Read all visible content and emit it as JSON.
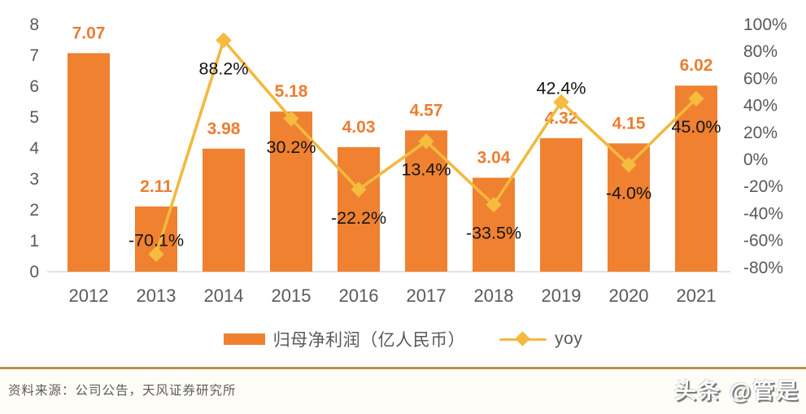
{
  "chart_data": {
    "type": "bar+line",
    "title": "",
    "categories": [
      "2012",
      "2013",
      "2014",
      "2015",
      "2016",
      "2017",
      "2018",
      "2019",
      "2020",
      "2021"
    ],
    "series": [
      {
        "name": "归母净利润（亿人民币）",
        "type": "bar",
        "axis": "left",
        "values": [
          7.07,
          2.11,
          3.98,
          5.18,
          4.03,
          4.57,
          3.04,
          4.32,
          4.15,
          6.02
        ],
        "labels": [
          "7.07",
          "2.11",
          "3.98",
          "5.18",
          "4.03",
          "4.57",
          "3.04",
          "4.32",
          "4.15",
          "6.02"
        ]
      },
      {
        "name": "yoy",
        "type": "line",
        "axis": "right",
        "values": [
          null,
          -70.1,
          88.2,
          30.2,
          -22.2,
          13.4,
          -33.5,
          42.4,
          -4.0,
          45.0
        ],
        "labels": [
          null,
          "-70.1%",
          "88.2%",
          "30.2%",
          "-22.2%",
          "13.4%",
          "-33.5%",
          "42.4%",
          "-4.0%",
          "45.0%"
        ],
        "label_side": [
          null,
          "above",
          "below",
          "below",
          "below",
          "below",
          "below",
          "above",
          "below",
          "below"
        ]
      }
    ],
    "left_axis": {
      "min": 0,
      "max": 8,
      "step": 1,
      "ticks": [
        "8",
        "7",
        "6",
        "5",
        "4",
        "3",
        "2",
        "1",
        "0"
      ]
    },
    "right_axis": {
      "min": -80,
      "max": 100,
      "step": 20,
      "ticks": [
        "100%",
        "80%",
        "60%",
        "40%",
        "20%",
        "0%",
        "-20%",
        "-40%",
        "-60%",
        "-80%"
      ],
      "tick_values": [
        100,
        80,
        60,
        40,
        20,
        0,
        -20,
        -40,
        -60,
        -80
      ]
    },
    "grid": false,
    "legend_position": "bottom",
    "colors": {
      "bar": "#EF8130",
      "bar_label": "#ED7D31",
      "line": "#F3B93E",
      "marker": "#F5BC40",
      "yoy_label": "#141414",
      "axis_text": "#595959",
      "axis_line": "#d9d9d9"
    }
  },
  "legend": {
    "bar_label": "归母净利润（亿人民币）",
    "line_label": "yoy"
  },
  "footer": {
    "source": "资料来源：公司公告，天风证券研究所",
    "divider_color": "#B79252"
  },
  "watermark": {
    "text": "头条 @管是"
  }
}
